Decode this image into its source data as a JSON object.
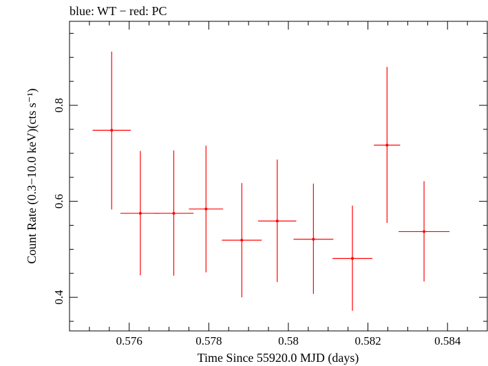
{
  "colors": {
    "background": "#ffffff",
    "axes": "#000000",
    "series_pc": "#ff0000"
  },
  "chart_data": {
    "type": "scatter",
    "title": "blue: WT − red: PC",
    "xlabel": "Time Since 55920.0 MJD (days)",
    "ylabel": "Count Rate (0.3−10.0 keV)(cts s⁻¹)",
    "xlim": [
      0.5745,
      0.585
    ],
    "ylim": [
      0.33,
      0.975
    ],
    "grid": false,
    "x_ticks": [
      {
        "value": 0.576,
        "label": "0.576"
      },
      {
        "value": 0.578,
        "label": "0.578"
      },
      {
        "value": 0.58,
        "label": "0.58"
      },
      {
        "value": 0.582,
        "label": "0.582"
      },
      {
        "value": 0.584,
        "label": "0.584"
      }
    ],
    "y_ticks": [
      {
        "value": 0.4,
        "label": "0.4"
      },
      {
        "value": 0.6,
        "label": "0.6"
      },
      {
        "value": 0.8,
        "label": "0.8"
      }
    ],
    "series": [
      {
        "name": "PC",
        "color": "#ff0000",
        "points": [
          {
            "x": 0.57556,
            "xerr": 0.00048,
            "y": 0.748,
            "ylo": 0.583,
            "yhi": 0.912
          },
          {
            "x": 0.57628,
            "xerr": 0.0005,
            "y": 0.575,
            "ylo": 0.446,
            "yhi": 0.705
          },
          {
            "x": 0.57712,
            "xerr": 0.0005,
            "y": 0.575,
            "ylo": 0.445,
            "yhi": 0.706
          },
          {
            "x": 0.57793,
            "xerr": 0.00043,
            "y": 0.584,
            "ylo": 0.452,
            "yhi": 0.716
          },
          {
            "x": 0.57883,
            "xerr": 0.0005,
            "y": 0.519,
            "ylo": 0.4,
            "yhi": 0.638
          },
          {
            "x": 0.57972,
            "xerr": 0.00048,
            "y": 0.559,
            "ylo": 0.432,
            "yhi": 0.687
          },
          {
            "x": 0.58063,
            "xerr": 0.0005,
            "y": 0.521,
            "ylo": 0.407,
            "yhi": 0.637
          },
          {
            "x": 0.58161,
            "xerr": 0.0005,
            "y": 0.481,
            "ylo": 0.372,
            "yhi": 0.591
          },
          {
            "x": 0.58248,
            "xerr": 0.00033,
            "y": 0.717,
            "ylo": 0.555,
            "yhi": 0.88
          },
          {
            "x": 0.58341,
            "xerr": 0.00064,
            "y": 0.537,
            "ylo": 0.433,
            "yhi": 0.642
          }
        ]
      }
    ]
  }
}
